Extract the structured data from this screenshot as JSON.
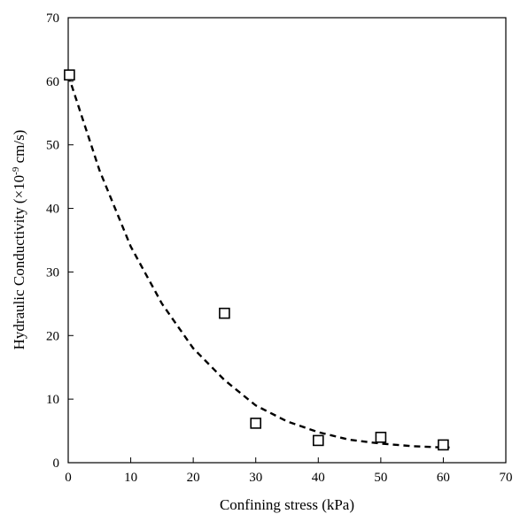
{
  "chart_data": {
    "type": "scatter",
    "title": "",
    "xlabel": "Confining stress (kPa)",
    "ylabel": "Hydraulic Conductivity (×10",
    "ylabel_sup": "-9",
    "ylabel_suffix": " cm/s)",
    "xlim": [
      0,
      70
    ],
    "ylim": [
      0,
      70
    ],
    "x_ticks": [
      0,
      10,
      20,
      30,
      40,
      50,
      60,
      70
    ],
    "y_ticks": [
      0,
      10,
      20,
      30,
      40,
      50,
      60,
      70
    ],
    "grid": false,
    "legend": "none",
    "series": [
      {
        "kind": "markers",
        "marker": "open-square",
        "points": [
          {
            "x": 0.2,
            "y": 61.0
          },
          {
            "x": 25.0,
            "y": 23.5
          },
          {
            "x": 30.0,
            "y": 6.2
          },
          {
            "x": 40.0,
            "y": 3.5
          },
          {
            "x": 50.0,
            "y": 4.0
          },
          {
            "x": 60.0,
            "y": 2.8
          }
        ]
      },
      {
        "kind": "trendline",
        "style": "dashed",
        "points": [
          {
            "x": 0,
            "y": 61.0
          },
          {
            "x": 5,
            "y": 46.0
          },
          {
            "x": 10,
            "y": 34.0
          },
          {
            "x": 15,
            "y": 25.0
          },
          {
            "x": 20,
            "y": 18.0
          },
          {
            "x": 25,
            "y": 13.0
          },
          {
            "x": 30,
            "y": 9.0
          },
          {
            "x": 35,
            "y": 6.5
          },
          {
            "x": 40,
            "y": 4.8
          },
          {
            "x": 45,
            "y": 3.6
          },
          {
            "x": 50,
            "y": 3.0
          },
          {
            "x": 55,
            "y": 2.6
          },
          {
            "x": 60,
            "y": 2.4
          },
          {
            "x": 61,
            "y": 2.4
          }
        ]
      }
    ]
  }
}
